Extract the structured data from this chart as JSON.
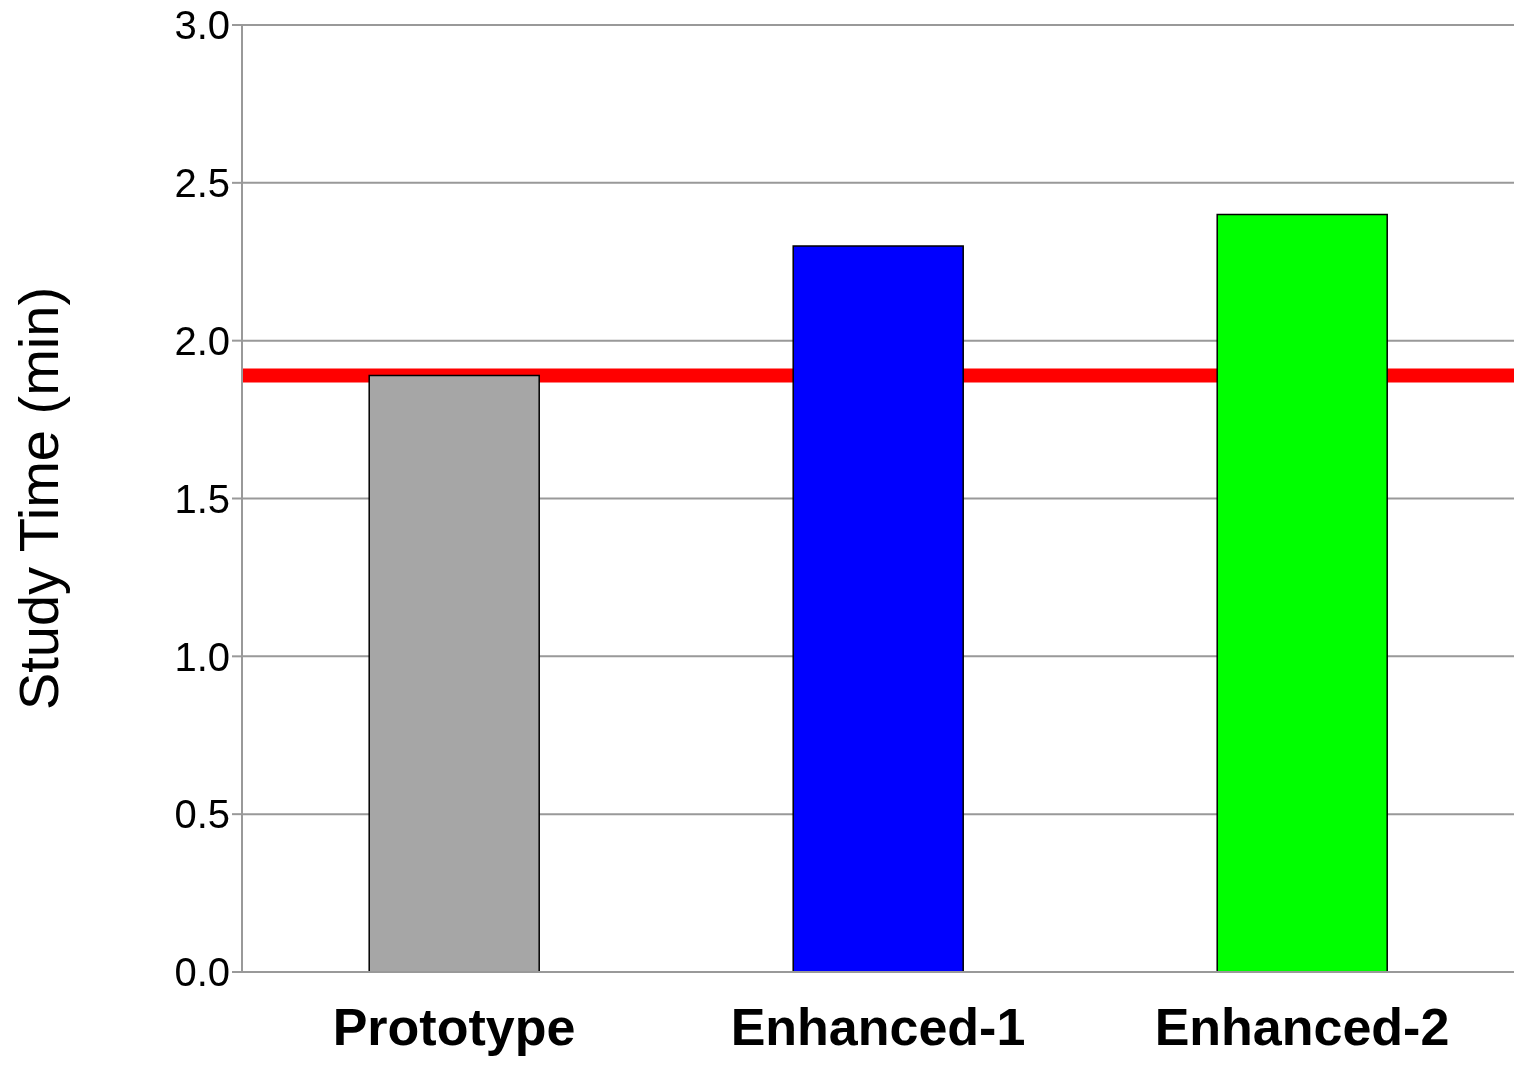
{
  "chart_data": {
    "type": "bar",
    "ylabel": "Study Time (min)",
    "categories": [
      "Prototype",
      "Enhanced-1",
      "Enhanced-2"
    ],
    "values": [
      1.89,
      2.3,
      2.4
    ],
    "colors": [
      "#a6a6a6",
      "#0000ff",
      "#00ff00"
    ],
    "ylim": [
      0,
      3
    ],
    "yticks": [
      {
        "value": 0,
        "label": "0.0"
      },
      {
        "value": 0.5,
        "label": "0.5"
      },
      {
        "value": 1,
        "label": "1.0"
      },
      {
        "value": 1.5,
        "label": "1.5"
      },
      {
        "value": 2,
        "label": "2.0"
      },
      {
        "value": 2.5,
        "label": "2.5"
      },
      {
        "value": 3,
        "label": "3.0"
      }
    ],
    "grid": "y",
    "ref_lines": [
      {
        "axis": "y",
        "value": 1.89,
        "color": "#ff0000"
      }
    ]
  }
}
